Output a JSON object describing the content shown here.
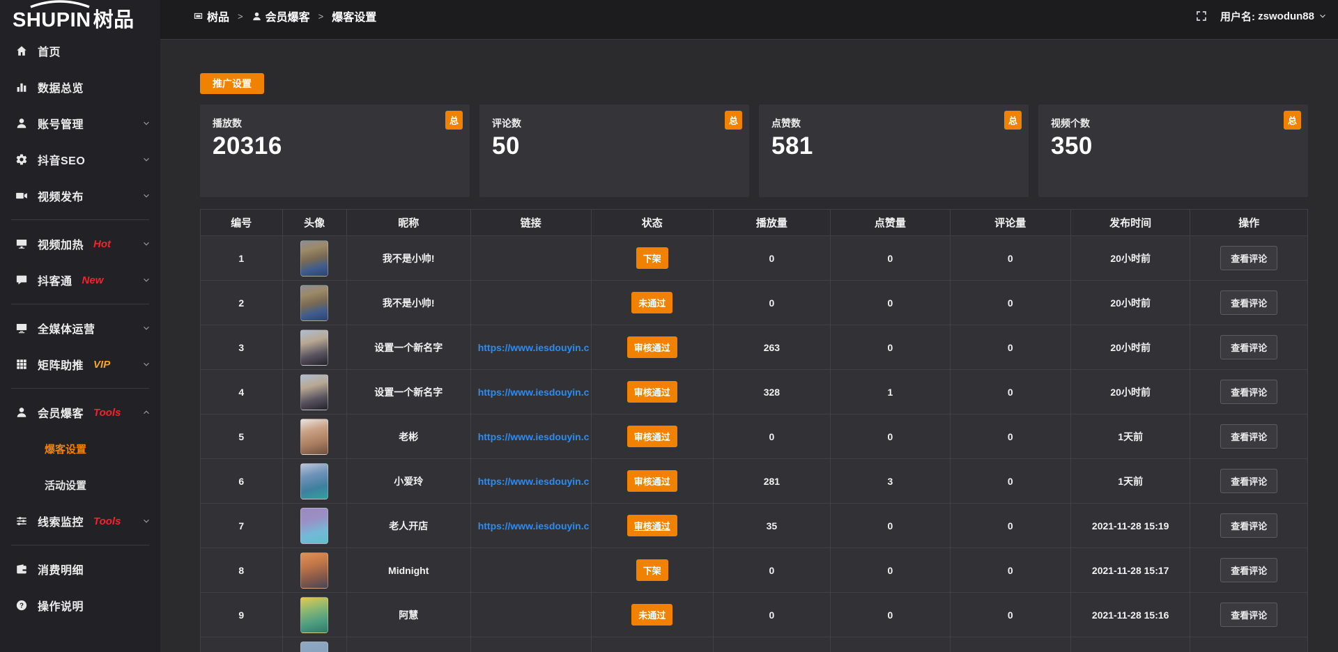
{
  "brand": {
    "logo_en": "SHUPIN",
    "logo_cn": "树品"
  },
  "colors": {
    "accent": "#f08200",
    "hot": "#f5222d",
    "vip": "#f5a623",
    "link": "#2d8cf0"
  },
  "topbar": {
    "breadcrumb": [
      {
        "label": "树品",
        "icon": "app-window-icon"
      },
      {
        "label": "会员爆客",
        "icon": "user-icon"
      },
      {
        "label": "爆客设置",
        "icon": ""
      }
    ],
    "separator": ">",
    "username_label": "用户名:",
    "username": "zswodun88"
  },
  "sidebar": {
    "items": [
      {
        "label": "首页",
        "icon": "home-icon",
        "badge": "",
        "badge_color": "",
        "chevron": "",
        "divider_after": false,
        "children": []
      },
      {
        "label": "数据总览",
        "icon": "bar-chart-icon",
        "badge": "",
        "badge_color": "",
        "chevron": "",
        "divider_after": false,
        "children": []
      },
      {
        "label": "账号管理",
        "icon": "user-icon",
        "badge": "",
        "badge_color": "",
        "chevron": "down",
        "divider_after": false,
        "children": []
      },
      {
        "label": "抖音SEO",
        "icon": "gear-icon",
        "badge": "",
        "badge_color": "",
        "chevron": "down",
        "divider_after": false,
        "children": []
      },
      {
        "label": "视频发布",
        "icon": "video-camera-icon",
        "badge": "",
        "badge_color": "",
        "chevron": "down",
        "divider_after": true,
        "children": []
      },
      {
        "label": "视频加热",
        "icon": "screen-icon",
        "badge": "Hot",
        "badge_color": "#f5222d",
        "chevron": "down",
        "divider_after": false,
        "children": []
      },
      {
        "label": "抖客通",
        "icon": "chat-icon",
        "badge": "New",
        "badge_color": "#f5222d",
        "chevron": "down",
        "divider_after": true,
        "children": []
      },
      {
        "label": "全媒体运营",
        "icon": "monitor-icon",
        "badge": "",
        "badge_color": "",
        "chevron": "down",
        "divider_after": false,
        "children": []
      },
      {
        "label": "矩阵助推",
        "icon": "grid-icon",
        "badge": "VIP",
        "badge_color": "#f5a623",
        "chevron": "down",
        "divider_after": true,
        "children": []
      },
      {
        "label": "会员爆客",
        "icon": "user-icon",
        "badge": "Tools",
        "badge_color": "#f5222d",
        "chevron": "up",
        "divider_after": false,
        "children": [
          {
            "label": "爆客设置",
            "active": true
          },
          {
            "label": "活动设置",
            "active": false
          }
        ]
      },
      {
        "label": "线索监控",
        "icon": "sliders-icon",
        "badge": "Tools",
        "badge_color": "#f5222d",
        "chevron": "down",
        "divider_after": true,
        "children": []
      },
      {
        "label": "消费明细",
        "icon": "wallet-icon",
        "badge": "",
        "badge_color": "",
        "chevron": "",
        "divider_after": false,
        "children": []
      },
      {
        "label": "操作说明",
        "icon": "question-circle-icon",
        "badge": "",
        "badge_color": "",
        "chevron": "",
        "divider_after": false,
        "children": []
      }
    ]
  },
  "toolbar": {
    "promo_button": "推广设置"
  },
  "stats": {
    "badge": "总",
    "cards": [
      {
        "label": "播放数",
        "value": "20316"
      },
      {
        "label": "评论数",
        "value": "50"
      },
      {
        "label": "点赞数",
        "value": "581"
      },
      {
        "label": "视频个数",
        "value": "350"
      }
    ]
  },
  "table": {
    "columns": [
      "编号",
      "头像",
      "昵称",
      "链接",
      "状态",
      "播放量",
      "点赞量",
      "评论量",
      "发布时间",
      "操作"
    ],
    "column_widths_pct": [
      7.4,
      5.8,
      11.2,
      10.9,
      11.0,
      10.6,
      10.8,
      10.9,
      10.8,
      10.6
    ],
    "action_label": "查看评论",
    "rows": [
      {
        "id": "1",
        "nickname": "我不是小帅!",
        "link": "",
        "status": "下架",
        "status_underlined": false,
        "plays": "0",
        "likes": "0",
        "comments": "0",
        "time": "20小时前",
        "avatar_gradient": [
          "#8d8d93",
          "#9c8a68",
          "#7a6a52",
          "#3f5c8f",
          "#2c436e"
        ]
      },
      {
        "id": "2",
        "nickname": "我不是小帅!",
        "link": "",
        "status": "未通过",
        "status_underlined": false,
        "plays": "0",
        "likes": "0",
        "comments": "0",
        "time": "20小时前",
        "avatar_gradient": [
          "#8d8d93",
          "#9c8a68",
          "#7a6a52",
          "#3f5c8f",
          "#2c436e"
        ]
      },
      {
        "id": "3",
        "nickname": "设置一个新名字",
        "link": "https://www.iesdouyin.c",
        "status": "审核通过",
        "status_underlined": false,
        "plays": "263",
        "likes": "0",
        "comments": "0",
        "time": "20小时前",
        "avatar_gradient": [
          "#aebdd2",
          "#b9a893",
          "#5a5560",
          "#23232b"
        ]
      },
      {
        "id": "4",
        "nickname": "设置一个新名字",
        "link": "https://www.iesdouyin.c",
        "status": "审核通过",
        "status_underlined": false,
        "plays": "328",
        "likes": "1",
        "comments": "0",
        "time": "20小时前",
        "avatar_gradient": [
          "#aebdd2",
          "#b9a893",
          "#5a5560",
          "#23232b"
        ]
      },
      {
        "id": "5",
        "nickname": "老彬",
        "link": "https://www.iesdouyin.c",
        "status": "审核通过",
        "status_underlined": false,
        "plays": "0",
        "likes": "0",
        "comments": "0",
        "time": "1天前",
        "avatar_gradient": [
          "#e8e4e2",
          "#c9a184",
          "#a97c60",
          "#70503c"
        ]
      },
      {
        "id": "6",
        "nickname": "小爱玲",
        "link": "https://www.iesdouyin.c",
        "status": "审核通过",
        "status_underlined": false,
        "plays": "281",
        "likes": "3",
        "comments": "0",
        "time": "1天前",
        "avatar_gradient": [
          "#b8c6d8",
          "#6f93b8",
          "#3f7f9f",
          "#2fa39b"
        ]
      },
      {
        "id": "7",
        "nickname": "老人开店",
        "link": "https://www.iesdouyin.c",
        "status": "审核通过",
        "status_underlined": true,
        "plays": "35",
        "likes": "0",
        "comments": "0",
        "time": "2021-11-28 15:19",
        "avatar_gradient": [
          "#978abd",
          "#9b8fc4",
          "#74b8d8",
          "#5fc0c8"
        ]
      },
      {
        "id": "8",
        "nickname": "Midnight",
        "link": "",
        "status": "下架",
        "status_underlined": false,
        "plays": "0",
        "likes": "0",
        "comments": "0",
        "time": "2021-11-28 15:17",
        "avatar_gradient": [
          "#e0905a",
          "#c47848",
          "#8a5a48",
          "#46465a"
        ]
      },
      {
        "id": "9",
        "nickname": "阿慧",
        "link": "",
        "status": "未通过",
        "status_underlined": false,
        "plays": "0",
        "likes": "0",
        "comments": "0",
        "time": "2021-11-28 15:16",
        "avatar_gradient": [
          "#e3c94f",
          "#8fb86f",
          "#4f9e82",
          "#2f7a68"
        ]
      },
      {
        "id": "",
        "nickname": "",
        "link": "",
        "status": "",
        "status_underlined": false,
        "plays": "",
        "likes": "",
        "comments": "",
        "time": "",
        "avatar_gradient": [
          "#8fa8c4",
          "#7f98b4"
        ]
      }
    ]
  }
}
